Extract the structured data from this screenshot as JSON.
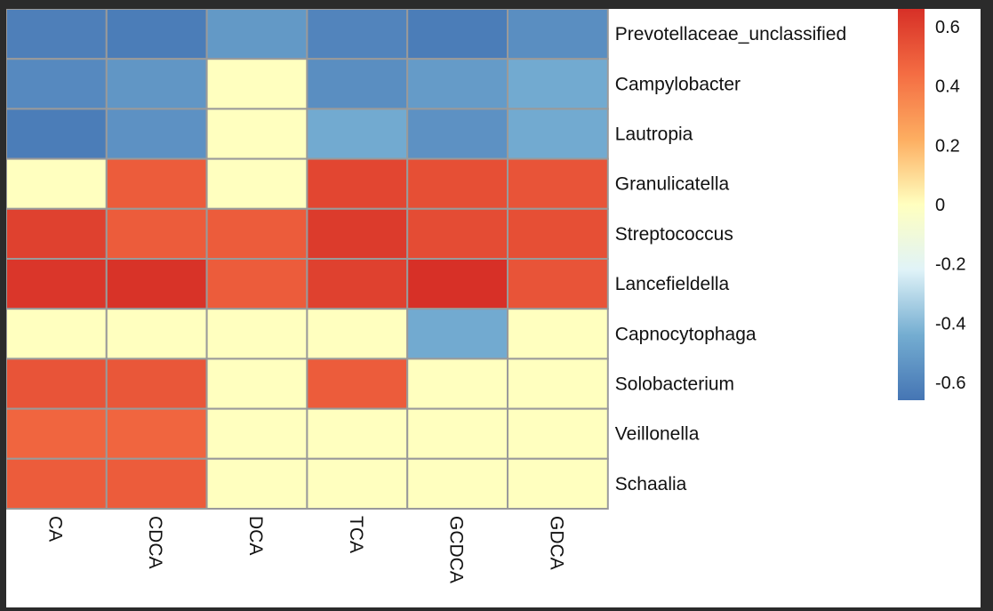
{
  "chart_data": {
    "type": "heatmap",
    "title": "",
    "xlabel": "",
    "ylabel": "",
    "columns": [
      "CA",
      "CDCA",
      "DCA",
      "TCA",
      "GCDCA",
      "GDCA"
    ],
    "rows": [
      "Prevotellaceae_unclassified",
      "Campylobacter",
      "Lautropia",
      "Granulicatella",
      "Streptococcus",
      "Lancefieldella",
      "Capnocytophaga",
      "Solobacterium",
      "Veillonella",
      "Schaalia"
    ],
    "values": [
      [
        -0.62,
        -0.63,
        -0.52,
        -0.6,
        -0.63,
        -0.56
      ],
      [
        -0.58,
        -0.53,
        0,
        -0.56,
        -0.51,
        -0.45
      ],
      [
        -0.63,
        -0.55,
        0,
        -0.45,
        -0.55,
        -0.45
      ],
      [
        0,
        0.5,
        0,
        0.58,
        0.55,
        0.53
      ],
      [
        0.6,
        0.5,
        0.5,
        0.62,
        0.56,
        0.55
      ],
      [
        0.64,
        0.65,
        0.5,
        0.6,
        0.66,
        0.53
      ],
      [
        0,
        0,
        0,
        0,
        -0.45,
        0
      ],
      [
        0.53,
        0.52,
        0,
        0.5,
        0,
        0
      ],
      [
        0.47,
        0.47,
        0,
        0,
        0,
        0
      ],
      [
        0.5,
        0.5,
        0,
        0,
        0,
        0
      ]
    ],
    "color_scale": {
      "min": -0.66,
      "mid": 0,
      "max": 0.66,
      "colors": [
        "#4575b4",
        "#74add1",
        "#e0f3f8",
        "#ffffbf",
        "#fdae61",
        "#f46d43",
        "#d73027"
      ]
    },
    "legend": {
      "ticks": [
        "0.6",
        "0.4",
        "0.2",
        "0",
        "-0.2",
        "-0.4",
        "-0.6"
      ],
      "tick_values": [
        0.6,
        0.4,
        0.2,
        0,
        -0.2,
        -0.4,
        -0.6
      ],
      "position": "right"
    },
    "grid": true,
    "grid_color": "#9a9a9a"
  }
}
